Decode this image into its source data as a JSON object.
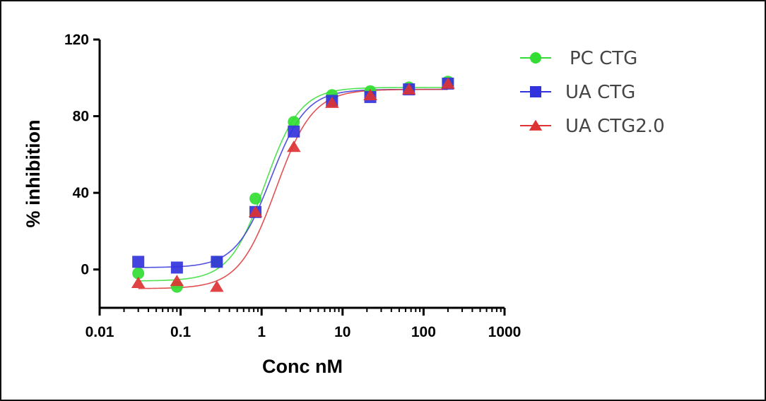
{
  "chart_data": {
    "type": "scatter",
    "title": "",
    "xlabel": "Conc nM",
    "ylabel": "% inhibition",
    "xscale": "log",
    "xlim": [
      0.01,
      1000
    ],
    "ylim": [
      -20,
      120
    ],
    "x_ticks": [
      0.01,
      0.1,
      1,
      10,
      100,
      1000
    ],
    "x_tick_labels": [
      "0.01",
      "0.1",
      "1",
      "10",
      "100",
      "1000"
    ],
    "y_ticks": [
      0,
      40,
      80,
      120
    ],
    "y_tick_labels": [
      "0",
      "40",
      "80",
      "120"
    ],
    "legend_position": "top-right",
    "series": [
      {
        "name": "PC CTG",
        "color": "#33dd33",
        "marker": "circle",
        "x": [
          0.03,
          0.09,
          0.28,
          0.84,
          2.5,
          7.4,
          22,
          66,
          200
        ],
        "y": [
          -2,
          -9,
          4,
          37,
          77,
          91,
          93,
          95,
          98
        ],
        "fit": {
          "bottom": -6,
          "top": 95,
          "ec50": 1.1,
          "hill": 2.0
        }
      },
      {
        "name": "UA CTG",
        "color": "#3333dd",
        "marker": "square",
        "x": [
          0.03,
          0.09,
          0.28,
          0.84,
          2.5,
          7.4,
          22,
          66,
          200
        ],
        "y": [
          4,
          1,
          4,
          30,
          72,
          88,
          90,
          94,
          97
        ],
        "fit": {
          "bottom": 1,
          "top": 94,
          "ec50": 1.3,
          "hill": 2.0
        }
      },
      {
        "name": "UA CTG2.0",
        "color": "#dd3333",
        "marker": "triangle",
        "x": [
          0.03,
          0.09,
          0.28,
          0.84,
          2.5,
          7.4,
          22,
          66,
          200
        ],
        "y": [
          -7,
          -6,
          -9,
          30,
          64,
          87,
          91,
          94,
          97
        ],
        "fit": {
          "bottom": -10,
          "top": 94,
          "ec50": 1.5,
          "hill": 1.9
        }
      }
    ]
  }
}
